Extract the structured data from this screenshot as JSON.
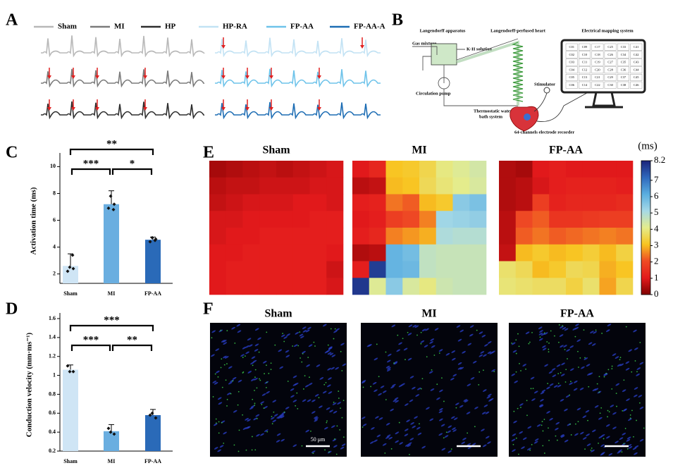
{
  "panel_labels": [
    "A",
    "B",
    "C",
    "D",
    "E",
    "F"
  ],
  "ecg": {
    "legend": [
      {
        "name": "Sham",
        "color": "#b8b8b8"
      },
      {
        "name": "MI",
        "color": "#7b7b7b"
      },
      {
        "name": "HP",
        "color": "#2e2e2e"
      },
      {
        "name": "HP-RA",
        "color": "#c2e2f4"
      },
      {
        "name": "FP-AA",
        "color": "#6ec3ea"
      },
      {
        "name": "FP-AA-A",
        "color": "#1d6db4"
      }
    ]
  },
  "setup": {
    "apparatus": "Langendorff apparatus",
    "heart": "Langendorff-perfused heart",
    "mapping": "Electrical mapping system",
    "gas": "Gas mixture",
    "solution": "K-H solution",
    "pump": "Circulation pump",
    "bath": [
      "Thermostatic water",
      "bath system"
    ],
    "stimulator": "Stimulator",
    "recorder": "64-channels electrode recorder",
    "electrodes": [
      [
        "C01",
        "C09",
        "C17",
        "C25",
        "C33",
        "C41"
      ],
      [
        "C02",
        "C10",
        "C18",
        "C26",
        "C34",
        "C42"
      ],
      [
        "C03",
        "C11",
        "C19",
        "C27",
        "C35",
        "C43"
      ],
      [
        "C04",
        "C12",
        "C20",
        "C28",
        "C36",
        "C44"
      ],
      [
        "C05",
        "C13",
        "C21",
        "C29",
        "C37",
        "C45"
      ],
      [
        "C06",
        "C14",
        "C22",
        "C30",
        "C38",
        "C46"
      ]
    ]
  },
  "chart_data": [
    {
      "type": "bar",
      "ylabel": "Activation time (ms)",
      "categories": [
        "Sham",
        "MI",
        "FP-AA"
      ],
      "values": [
        2.6,
        7.2,
        4.55
      ],
      "errors": [
        0.9,
        1.0,
        0.2
      ],
      "points": [
        [
          2.2,
          2.4,
          2.5,
          3.4
        ],
        [
          6.9,
          7.2,
          7.8,
          6.8
        ],
        [
          4.4,
          4.6,
          4.7,
          4.5
        ]
      ],
      "colors": [
        "#cfe5f5",
        "#6aaee0",
        "#2a6ab8"
      ],
      "ylim": [
        1.3,
        10.6
      ],
      "yticks": [
        2,
        4,
        6,
        8,
        10
      ],
      "significance": [
        {
          "label": "**",
          "pair": [
            "Sham",
            "FP-AA"
          ]
        },
        {
          "label": "***",
          "pair": [
            "Sham",
            "MI"
          ]
        },
        {
          "label": "*",
          "pair": [
            "MI",
            "FP-AA"
          ]
        }
      ]
    },
    {
      "type": "bar",
      "ylabel": "Conduction velocity (mm·ms⁻¹)",
      "categories": [
        "Sham",
        "MI",
        "FP-AA"
      ],
      "values": [
        1.06,
        0.41,
        0.58
      ],
      "errors": [
        0.05,
        0.07,
        0.06
      ],
      "points": [
        [
          1.1,
          1.04,
          1.04
        ],
        [
          0.44,
          0.38,
          0.4
        ],
        [
          0.58,
          0.55,
          0.6
        ]
      ],
      "colors": [
        "#cfe5f5",
        "#6aaee0",
        "#2a6ab8"
      ],
      "ylim": [
        0.2,
        1.6
      ],
      "yticks": [
        0.2,
        0.4,
        0.6,
        0.8,
        1.0,
        1.2,
        1.4,
        1.6
      ],
      "significance": [
        {
          "label": "***",
          "pair": [
            "Sham",
            "FP-AA"
          ]
        },
        {
          "label": "***",
          "pair": [
            "Sham",
            "MI"
          ]
        },
        {
          "label": "**",
          "pair": [
            "MI",
            "FP-AA"
          ]
        }
      ]
    },
    {
      "type": "heatmap",
      "titles": [
        "Sham",
        "MI",
        "FP-AA"
      ],
      "colorbar_label": "(ms)",
      "clim": [
        0,
        8.2
      ],
      "cticks": [
        0,
        1,
        2,
        3,
        4,
        5,
        6,
        7,
        8.2
      ],
      "colormap": [
        "#7f0000",
        "#e31a1c",
        "#ef4a24",
        "#f8c420",
        "#e4ec8c",
        "#a6d9e6",
        "#5aaee0",
        "#2f68bc",
        "#1a237a"
      ],
      "grids": [
        [
          [
            0.4,
            0.5,
            0.6,
            0.7,
            0.6,
            0.7,
            0.8,
            0.9
          ],
          [
            0.6,
            0.7,
            0.7,
            0.8,
            0.8,
            0.8,
            0.9,
            0.9
          ],
          [
            0.7,
            0.8,
            0.9,
            0.9,
            0.9,
            1.0,
            1.0,
            0.9
          ],
          [
            0.9,
            0.9,
            1.0,
            1.0,
            1.0,
            1.0,
            1.1,
            1.1
          ],
          [
            0.9,
            1.0,
            1.0,
            1.1,
            1.1,
            1.1,
            1.1,
            1.1
          ],
          [
            1.0,
            1.0,
            1.1,
            1.1,
            1.1,
            1.1,
            1.1,
            1.0
          ],
          [
            1.0,
            1.1,
            1.1,
            1.1,
            1.1,
            1.1,
            1.1,
            0.8
          ],
          [
            1.0,
            1.1,
            1.1,
            1.1,
            1.1,
            1.1,
            1.1,
            0.9
          ]
        ],
        [
          [
            1.0,
            1.3,
            3.1,
            3.2,
            3.5,
            4.0,
            4.2,
            4.4
          ],
          [
            0.6,
            0.7,
            3.0,
            3.1,
            3.6,
            3.9,
            4.1,
            4.3
          ],
          [
            1.1,
            1.2,
            2.4,
            2.2,
            3.0,
            3.2,
            5.5,
            5.7
          ],
          [
            1.0,
            1.1,
            1.8,
            2.0,
            2.5,
            5.2,
            5.3,
            5.4
          ],
          [
            1.1,
            1.3,
            2.5,
            2.7,
            2.9,
            5.0,
            4.9,
            4.9
          ],
          [
            0.5,
            0.6,
            6.0,
            5.8,
            4.7,
            4.6,
            4.6,
            4.6
          ],
          [
            1.1,
            7.8,
            6.0,
            5.9,
            4.7,
            4.6,
            4.6,
            4.6
          ],
          [
            7.9,
            4.2,
            5.5,
            4.3,
            4.0,
            4.5,
            4.6,
            4.6
          ]
        ],
        [
          [
            0.5,
            0.4,
            1.0,
            1.1,
            1.0,
            1.0,
            1.0,
            1.0
          ],
          [
            0.5,
            0.6,
            0.9,
            1.1,
            1.2,
            1.2,
            1.2,
            1.1
          ],
          [
            0.5,
            0.6,
            1.8,
            1.2,
            1.3,
            1.3,
            1.3,
            1.4
          ],
          [
            0.6,
            2.0,
            2.2,
            1.6,
            1.6,
            1.7,
            1.8,
            1.8
          ],
          [
            0.6,
            2.2,
            2.4,
            2.2,
            2.3,
            2.4,
            2.5,
            2.4
          ],
          [
            0.7,
            3.0,
            3.2,
            3.0,
            3.1,
            3.3,
            3.0,
            3.4
          ],
          [
            3.8,
            3.6,
            3.0,
            3.2,
            3.6,
            3.5,
            2.9,
            3.1
          ],
          [
            3.9,
            3.8,
            3.7,
            3.7,
            3.4,
            3.8,
            2.8,
            3.5
          ]
        ]
      ]
    }
  ],
  "images": {
    "titles": [
      "Sham",
      "MI",
      "FP-AA"
    ],
    "scale_bar": "50 μm"
  }
}
